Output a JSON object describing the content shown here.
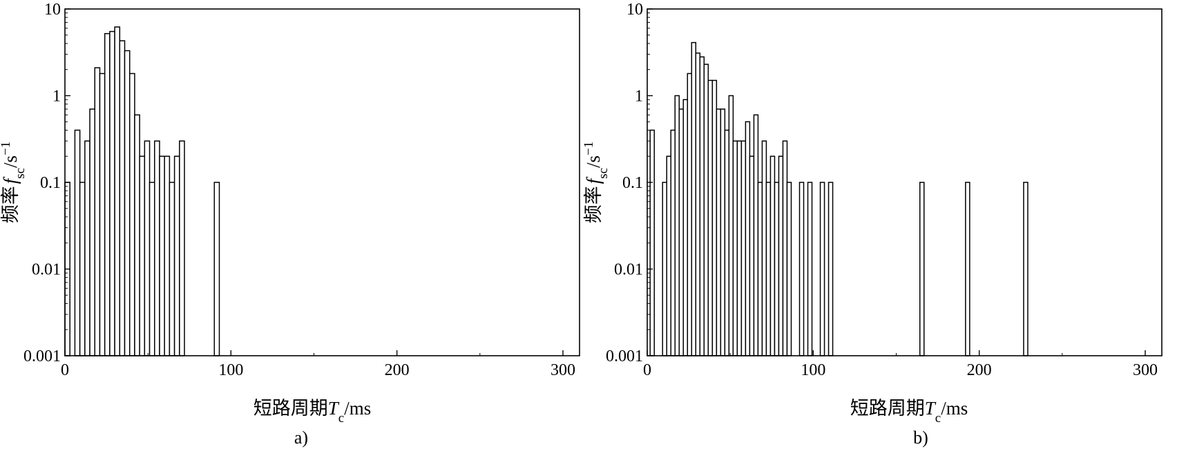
{
  "chart_data": [
    {
      "type": "bar",
      "panel_label": "a)",
      "xlabel": "短路周期",
      "xlabel_var": "T",
      "xlabel_sub": "c",
      "xlabel_unit": "/ms",
      "ylabel": "频率",
      "ylabel_var": "f",
      "ylabel_sub": "sc",
      "ylabel_unit": "/s",
      "ylabel_exp": "−1",
      "yscale": "log",
      "xlim": [
        0,
        310
      ],
      "ylim": [
        0.001,
        10
      ],
      "xticks": [
        "0",
        "100",
        "200",
        "300"
      ],
      "yticks": [
        "0.001",
        "0.01",
        "0.1",
        "1",
        "10"
      ],
      "grid": false,
      "bin_width_ms": 3,
      "x": [
        1.5,
        7.5,
        10.5,
        13.5,
        16.5,
        19.5,
        22.5,
        25.5,
        28.5,
        31.5,
        34.5,
        37.5,
        40.5,
        43.5,
        46.5,
        49.5,
        52.5,
        55.5,
        58.5,
        61.5,
        64.5,
        67.5,
        70.5,
        91.5
      ],
      "values": [
        0.1,
        0.4,
        0.1,
        0.3,
        0.7,
        2.1,
        1.8,
        5.2,
        5.5,
        6.2,
        4.3,
        3.3,
        1.8,
        0.6,
        0.2,
        0.3,
        0.1,
        0.3,
        0.2,
        0.2,
        0.1,
        0.2,
        0.3,
        0.1
      ]
    },
    {
      "type": "bar",
      "panel_label": "b)",
      "xlabel": "短路周期",
      "xlabel_var": "T",
      "xlabel_sub": "c",
      "xlabel_unit": "/ms",
      "ylabel": "频率",
      "ylabel_var": "f",
      "ylabel_sub": "sc",
      "ylabel_unit": "/s",
      "ylabel_exp": "−1",
      "yscale": "log",
      "xlim": [
        0,
        310
      ],
      "ylim": [
        0.001,
        10
      ],
      "xticks": [
        "0",
        "100",
        "200",
        "300"
      ],
      "yticks": [
        "0.001",
        "0.01",
        "0.1",
        "1",
        "10"
      ],
      "grid": false,
      "bin_width_ms": 2.5,
      "x": [
        3,
        10.5,
        13,
        15.5,
        18,
        20.5,
        23,
        25.5,
        28,
        30.5,
        33,
        35.5,
        38,
        40.5,
        43,
        45.5,
        48,
        50.5,
        53,
        55.5,
        58,
        60.5,
        63,
        65.5,
        68,
        70.5,
        73,
        75.5,
        78,
        80.5,
        83,
        85.5,
        93,
        98,
        105.5,
        110.5,
        165.5,
        193,
        228
      ],
      "values": [
        0.4,
        0.1,
        0.2,
        0.4,
        1.0,
        0.7,
        0.9,
        1.8,
        4.1,
        3.1,
        2.8,
        2.3,
        1.5,
        1.5,
        0.7,
        0.7,
        0.4,
        1.0,
        0.3,
        0.3,
        0.3,
        0.5,
        0.2,
        0.6,
        0.1,
        0.3,
        0.1,
        0.2,
        0.1,
        0.2,
        0.3,
        0.1,
        0.1,
        0.1,
        0.1,
        0.1,
        0.1,
        0.1,
        0.1
      ]
    }
  ]
}
